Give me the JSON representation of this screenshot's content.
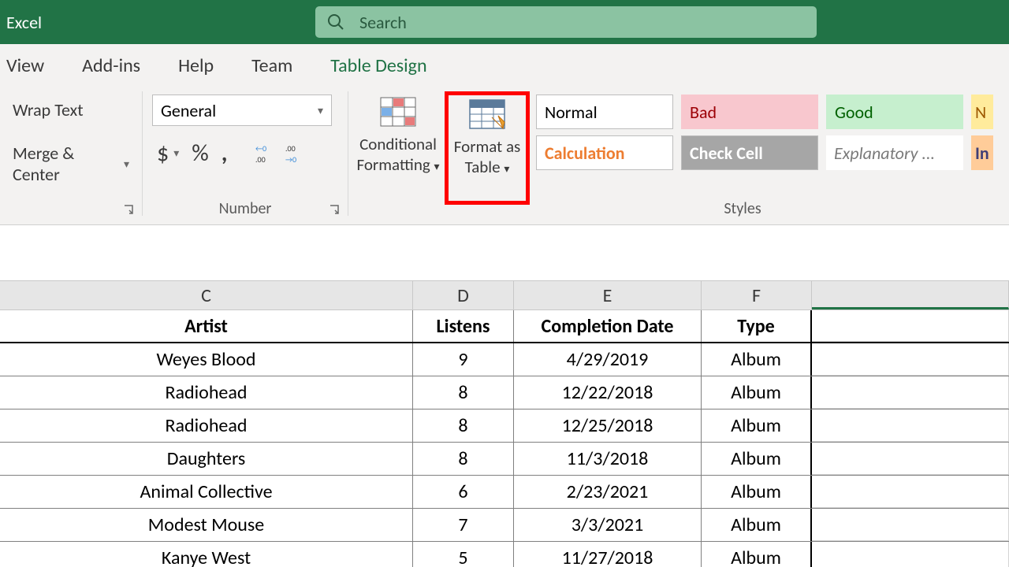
{
  "app": {
    "name": "Excel"
  },
  "search": {
    "placeholder": "Search"
  },
  "tabs": {
    "view": "View",
    "addins": "Add-ins",
    "help": "Help",
    "team": "Team",
    "table_design": "Table Design"
  },
  "ribbon": {
    "alignment": {
      "wrap_text": "Wrap Text",
      "merge_center": "Merge & Center"
    },
    "number": {
      "group_label": "Number",
      "format": "General",
      "currency": "$",
      "percent": "%",
      "comma": ","
    },
    "conditional_formatting": "Conditional\nFormatting",
    "format_as_table": "Format as\nTable",
    "styles_label": "Styles",
    "cell_styles": {
      "normal": "Normal",
      "bad": "Bad",
      "good": "Good",
      "neutral_n": "N",
      "calculation": "Calculation",
      "check_cell": "Check Cell",
      "explanatory": "Explanatory ...",
      "input_in": "In"
    }
  },
  "sheet": {
    "columns": {
      "c": "C",
      "d": "D",
      "e": "E",
      "f": "F"
    },
    "headers": {
      "c": "Artist",
      "d": "Listens",
      "e": "Completion Date",
      "f": "Type"
    },
    "rows": [
      {
        "c": "Weyes Blood",
        "d": "9",
        "e": "4/29/2019",
        "f": "Album"
      },
      {
        "c": "Radiohead",
        "d": "8",
        "e": "12/22/2018",
        "f": "Album"
      },
      {
        "c": "Radiohead",
        "d": "8",
        "e": "12/25/2018",
        "f": "Album"
      },
      {
        "c": "Daughters",
        "d": "8",
        "e": "11/3/2018",
        "f": "Album"
      },
      {
        "c": "Animal Collective",
        "d": "6",
        "e": "2/23/2021",
        "f": "Album"
      },
      {
        "c": "Modest Mouse",
        "d": "7",
        "e": "3/3/2021",
        "f": "Album"
      },
      {
        "c": "Kanye West",
        "d": "5",
        "e": "11/27/2018",
        "f": "Album"
      }
    ]
  },
  "colors": {
    "brand": "#217346",
    "highlight": "#ff0000"
  }
}
